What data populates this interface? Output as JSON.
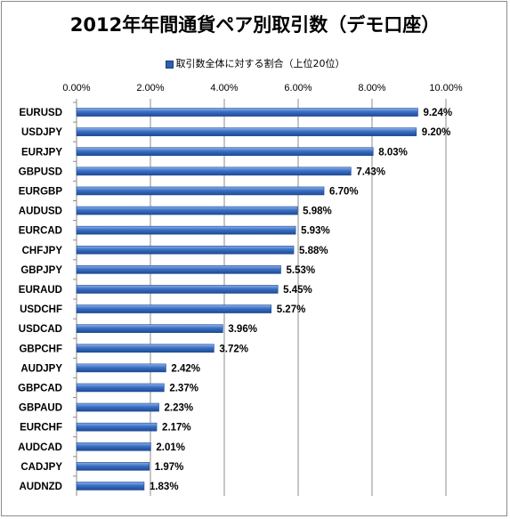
{
  "chart_data": {
    "type": "bar",
    "orientation": "horizontal",
    "title": "2012年年間通貨ペア別取引数（デモ口座）",
    "legend": {
      "label": "取引数全体に対する割合（上位20位）",
      "placement": "top"
    },
    "xlim": [
      0,
      10
    ],
    "x_ticks": [
      "0.00%",
      "2.00%",
      "4.00%",
      "6.00%",
      "8.00%",
      "10.00%"
    ],
    "grid": true,
    "categories": [
      "EURUSD",
      "USDJPY",
      "EURJPY",
      "GBPUSD",
      "EURGBP",
      "AUDUSD",
      "EURCAD",
      "CHFJPY",
      "GBPJPY",
      "EURAUD",
      "USDCHF",
      "USDCAD",
      "GBPCHF",
      "AUDJPY",
      "GBPCAD",
      "GBPAUD",
      "EURCHF",
      "AUDCAD",
      "CADJPY",
      "AUDNZD"
    ],
    "values": [
      9.24,
      9.2,
      8.03,
      7.43,
      6.7,
      5.98,
      5.93,
      5.88,
      5.53,
      5.45,
      5.27,
      3.96,
      3.72,
      2.42,
      2.37,
      2.23,
      2.17,
      2.01,
      1.97,
      1.83
    ],
    "value_labels": [
      "9.24%",
      "9.20%",
      "8.03%",
      "7.43%",
      "6.70%",
      "5.98%",
      "5.93%",
      "5.88%",
      "5.53%",
      "5.45%",
      "5.27%",
      "3.96%",
      "3.72%",
      "2.42%",
      "2.37%",
      "2.23%",
      "2.17%",
      "2.01%",
      "1.97%",
      "1.83%"
    ],
    "colors": {
      "bar": "#3a6fc4",
      "bar_dark": "#1f4a94",
      "bar_light": "#8fb2ea",
      "grid": "#8c8c8c"
    }
  }
}
